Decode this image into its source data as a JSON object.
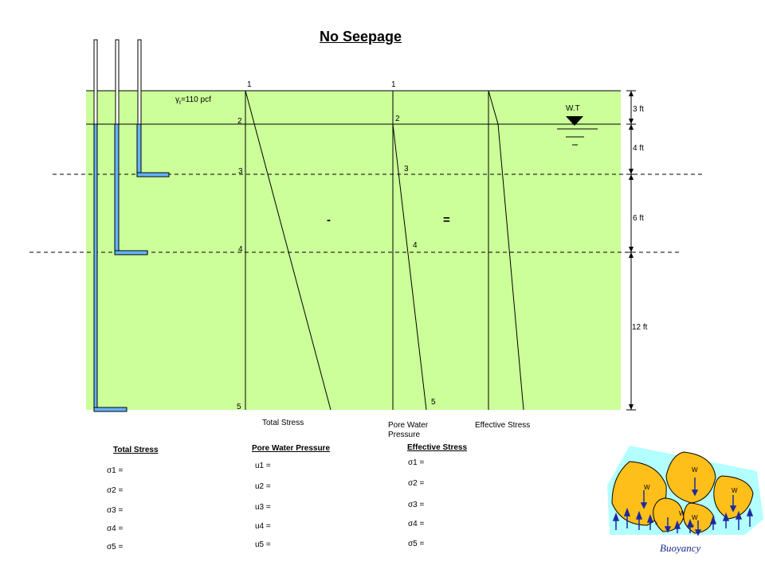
{
  "title": "No Seepage",
  "soil": {
    "unit_weight": "=110 pcf",
    "unit_weight_symbol": "γ",
    "unit_weight_subscript": "t",
    "water_table_label": "W.T"
  },
  "layers": [
    {
      "thickness": "3 ft"
    },
    {
      "thickness": "4 ft"
    },
    {
      "thickness": "6 ft"
    },
    {
      "thickness": "12 ft"
    }
  ],
  "profile_points": {
    "total_stress": [
      "1",
      "2",
      "3",
      "4",
      "5"
    ],
    "pore_pressure": [
      "1",
      "2",
      "3",
      "4",
      "5"
    ]
  },
  "operators": {
    "minus": "-",
    "equals": "="
  },
  "profile_labels": {
    "total_stress": "Total Stress",
    "pore_pressure": "Pore Water Pressure",
    "effective_stress": "Effective  Stress"
  },
  "tables": {
    "total_stress": {
      "header": "Total Stress",
      "rows": [
        "σ1 =",
        "σ2 =",
        "σ3  =",
        "σ4  =",
        "σ5  ="
      ]
    },
    "pore_pressure": {
      "header": "Pore Water Pressure",
      "rows": [
        "u1 =",
        "u2 =",
        "u3  =",
        "u4  =",
        "u5  ="
      ]
    },
    "effective_stress": {
      "header": "Effective Stress",
      "rows": [
        "σ1 =",
        "σ2 =",
        "σ3  =",
        "σ4  =",
        "σ5  ="
      ]
    }
  },
  "buoyancy": {
    "caption": "Buoyancy",
    "grains": [
      "W",
      "W",
      "W",
      "W",
      "W"
    ],
    "grain_subscripts": [
      "s",
      "s"
    ]
  },
  "colors": {
    "soil": "#ccff99",
    "piezometer": "#66b3ff",
    "grain": "#ffbf1a",
    "water_film": "#b3ffff",
    "arrow": "#1a2aa0"
  }
}
